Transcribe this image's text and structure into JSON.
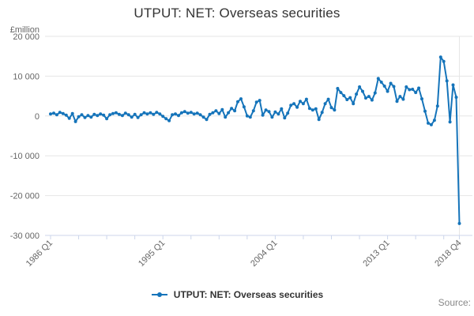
{
  "title": "UTPUT: NET: Overseas securities",
  "unit_label": "£million",
  "legend": {
    "series_label": "UTPUT: NET: Overseas securities"
  },
  "source_label": "Source:",
  "chart_data": {
    "type": "line",
    "title": "UTPUT: NET: Overseas securities",
    "ylabel": "£million",
    "ylim": [
      -30000,
      20000
    ],
    "grid": true,
    "legend_position": "bottom-center",
    "y_ticks": [
      {
        "value": 20000,
        "label": "20 000"
      },
      {
        "value": 10000,
        "label": "10 000"
      },
      {
        "value": 0,
        "label": "0"
      },
      {
        "value": -10000,
        "label": "-10 000"
      },
      {
        "value": -20000,
        "label": "-20 000"
      },
      {
        "value": -30000,
        "label": "-30 000"
      }
    ],
    "x_labeled_ticks": [
      {
        "index": 0,
        "label": "1986 Q1"
      },
      {
        "index": 36,
        "label": "1995 Q1"
      },
      {
        "index": 72,
        "label": "2004 Q1"
      },
      {
        "index": 108,
        "label": "2013 Q1"
      },
      {
        "index": 131,
        "label": "2018 Q4"
      }
    ],
    "x_minor_tick_indices": [
      0,
      9,
      18,
      27,
      36,
      45,
      54,
      63,
      72,
      81,
      90,
      99,
      108,
      117,
      126,
      131
    ],
    "x_start": "1986 Q1",
    "x_end": "2018 Q4",
    "x_freq": "quarterly",
    "series": [
      {
        "name": "UTPUT: NET: Overseas securities",
        "values": [
          500,
          700,
          300,
          900,
          600,
          200,
          -600,
          600,
          -1400,
          -200,
          300,
          -400,
          100,
          -300,
          400,
          100,
          500,
          200,
          -700,
          300,
          600,
          800,
          400,
          100,
          700,
          300,
          -300,
          400,
          -400,
          300,
          800,
          500,
          800,
          400,
          900,
          500,
          -100,
          -700,
          -1200,
          300,
          500,
          100,
          800,
          1100,
          700,
          900,
          500,
          700,
          300,
          -300,
          -900,
          400,
          800,
          1300,
          600,
          1600,
          -300,
          800,
          1900,
          1300,
          3600,
          4300,
          2300,
          0,
          -300,
          1300,
          3500,
          3900,
          200,
          1500,
          1100,
          -300,
          1000,
          500,
          1800,
          -500,
          700,
          2700,
          3100,
          2200,
          3700,
          3100,
          4200,
          1900,
          1500,
          1800,
          -900,
          900,
          3100,
          4200,
          2100,
          1500,
          6900,
          5900,
          5100,
          4100,
          4600,
          3100,
          5500,
          7300,
          6200,
          4500,
          4900,
          4000,
          5800,
          9400,
          8500,
          7500,
          6200,
          8200,
          7400,
          3700,
          4900,
          4200,
          7300,
          6600,
          6700,
          5900,
          7000,
          4300,
          1200,
          -1800,
          -2200,
          -1100,
          2500,
          14800,
          13700,
          8800,
          -1500,
          7800,
          4700,
          -27000
        ]
      }
    ],
    "colors": {
      "series": "#1574ba",
      "grid": "#e6e6e6",
      "axis": "#ccd6eb",
      "tick_text": "#666666",
      "title_text": "#333333",
      "legend_text": "#333333",
      "source_text": "#888888"
    }
  }
}
